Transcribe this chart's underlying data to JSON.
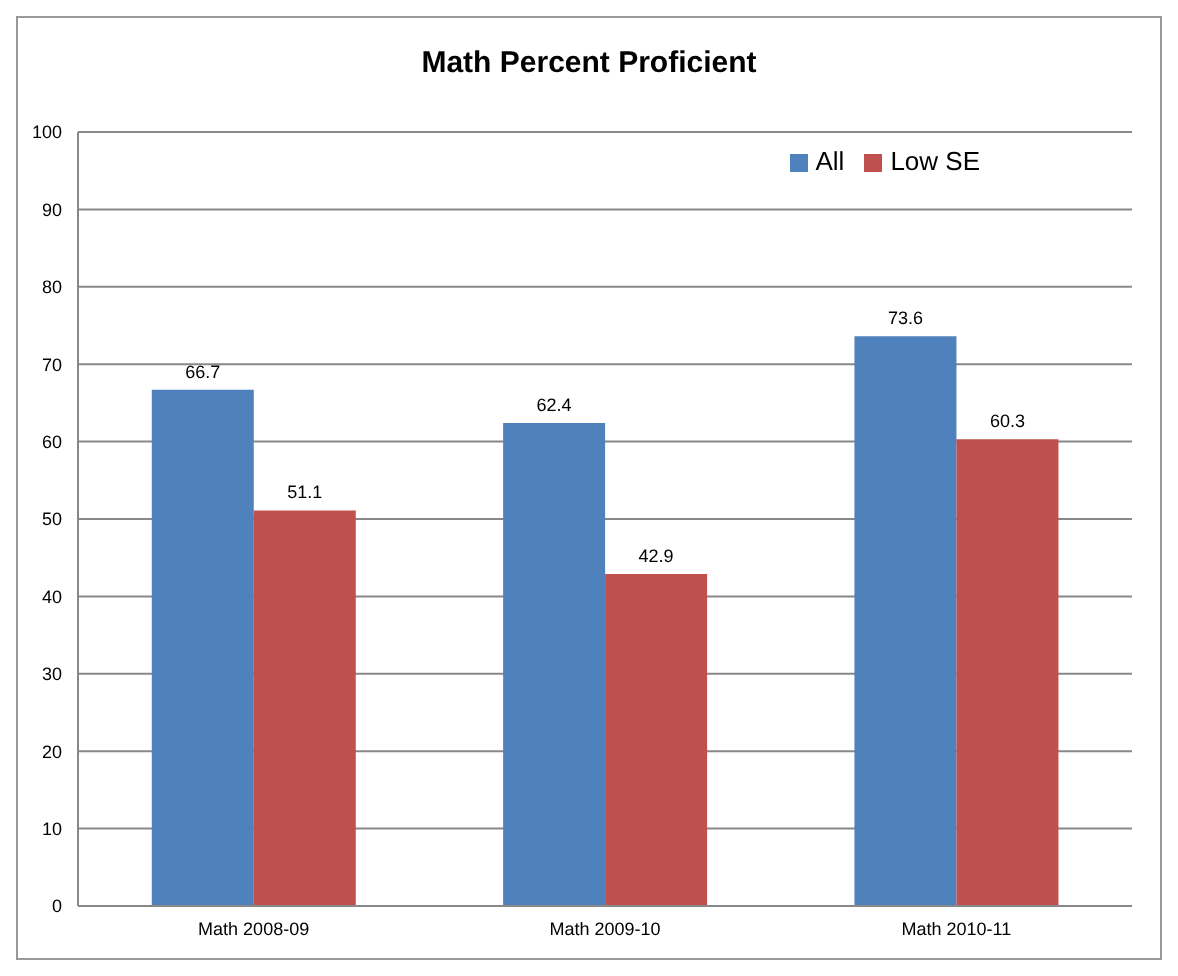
{
  "chart_data": {
    "type": "bar",
    "title": "Math Percent Proficient",
    "categories": [
      "Math 2008-09",
      "Math 2009-10",
      "Math 2010-11"
    ],
    "series": [
      {
        "name": "All",
        "color": "#4f81bd",
        "values": [
          66.7,
          62.4,
          73.6
        ]
      },
      {
        "name": "Low SE",
        "color": "#c0504d",
        "values": [
          51.1,
          42.9,
          60.3
        ]
      }
    ],
    "ylim": [
      0,
      100
    ],
    "yticks": [
      0,
      10,
      20,
      30,
      40,
      50,
      60,
      70,
      80,
      90,
      100
    ],
    "grid": "y",
    "legend": "top right",
    "data_labels": true
  }
}
